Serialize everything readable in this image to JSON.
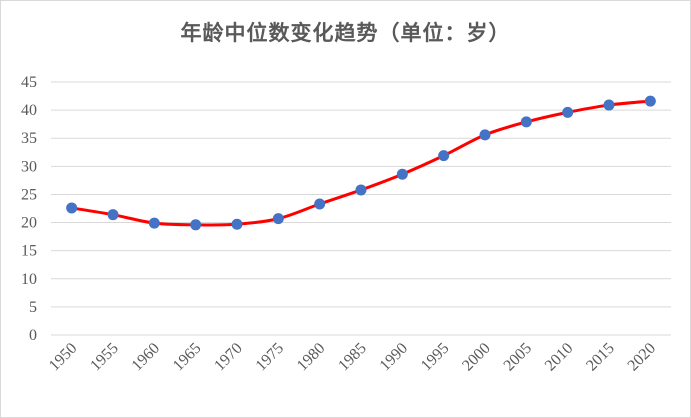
{
  "chart_data": {
    "type": "line",
    "title": "年龄中位数变化趋势（单位：岁）",
    "xlabel": "",
    "ylabel": "",
    "x": [
      "1950",
      "1955",
      "1960",
      "1965",
      "1970",
      "1975",
      "1980",
      "1985",
      "1990",
      "1995",
      "2000",
      "2005",
      "2010",
      "2015",
      "2020"
    ],
    "series": [
      {
        "values": [
          22.6,
          21.4,
          19.9,
          19.6,
          19.7,
          20.7,
          23.3,
          25.8,
          28.6,
          31.9,
          35.6,
          37.9,
          39.6,
          40.9,
          41.6
        ]
      }
    ],
    "ylim": [
      0,
      45
    ],
    "yticks": [
      "0",
      "5",
      "10",
      "15",
      "20",
      "25",
      "30",
      "35",
      "40",
      "45"
    ],
    "grid": true,
    "legend": "none",
    "line_color": "#ff0000",
    "marker_color": "#4472c4",
    "grid_color": "#d9d9d9",
    "text_color": "#595959"
  }
}
